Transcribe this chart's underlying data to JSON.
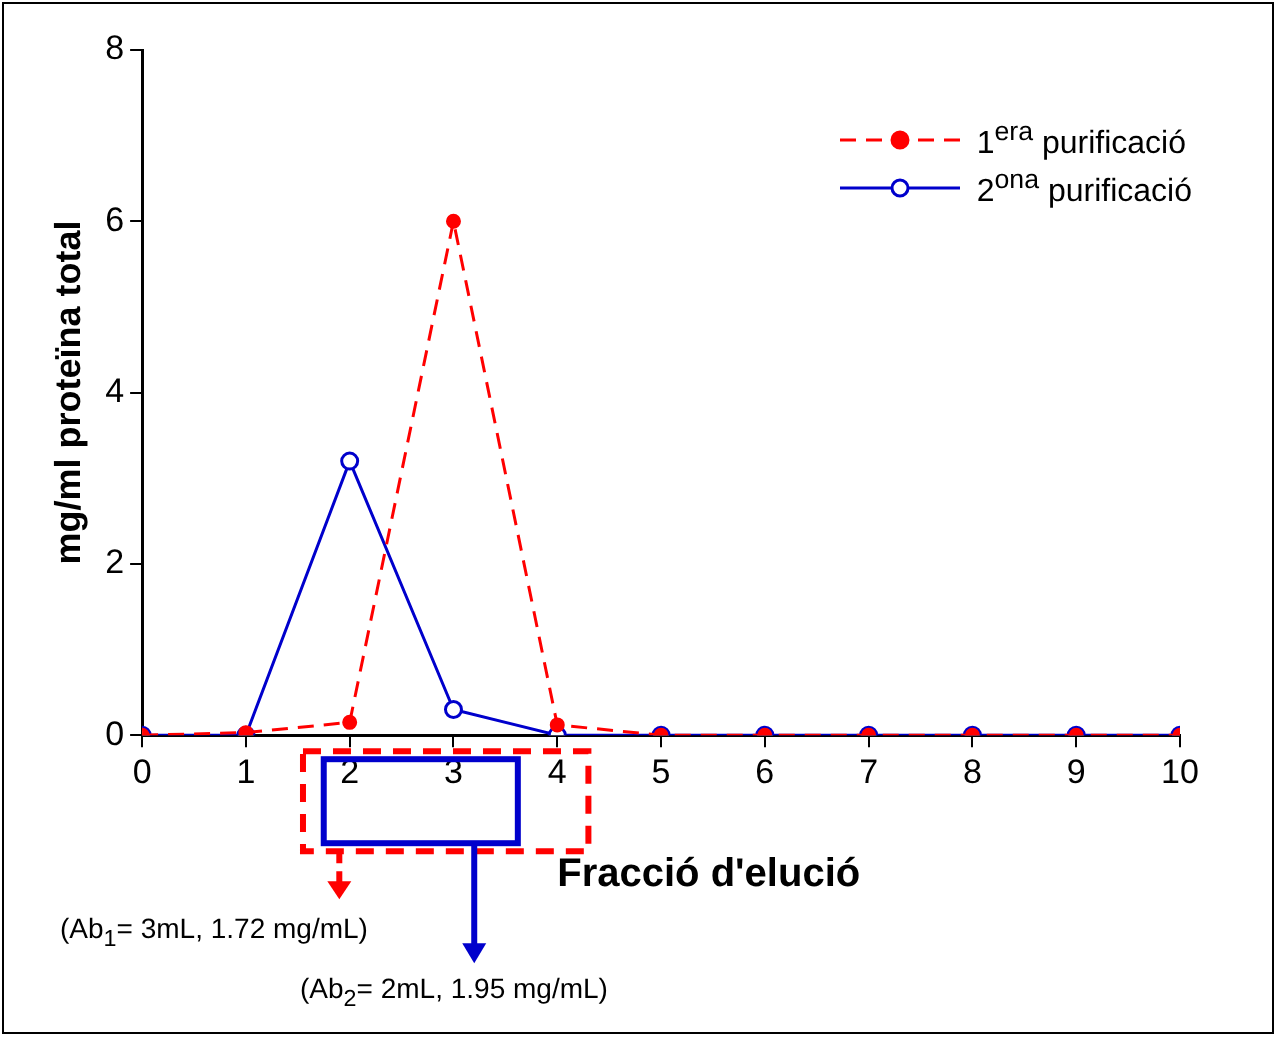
{
  "chart_data": {
    "type": "line",
    "xlabel": "Fracció d'elució",
    "ylabel": "mg/ml proteïna total",
    "x": [
      0,
      1,
      2,
      3,
      4,
      5,
      6,
      7,
      8,
      9,
      10
    ],
    "series": [
      {
        "name": "1$^{era}$ purificació",
        "color": "#ff0000",
        "line_style": "dashed",
        "marker": "circle",
        "values": [
          0,
          0.03,
          0.15,
          6.0,
          0.12,
          0,
          0,
          0,
          0,
          0,
          0
        ]
      },
      {
        "name": "2$^{ona}$ purificació",
        "color": "#0000cc",
        "line_style": "solid",
        "marker": "circle",
        "values": [
          0,
          0,
          3.2,
          0.3,
          0,
          0,
          0,
          0,
          0,
          0,
          0
        ]
      }
    ],
    "xlim": [
      0,
      10
    ],
    "xticks": [
      0,
      1,
      2,
      3,
      4,
      5,
      6,
      7,
      8,
      9,
      10
    ],
    "ylim": [
      0,
      8
    ],
    "yticks": [
      0,
      2,
      4,
      6,
      8
    ],
    "grid": false,
    "legend": "top right",
    "annotations": [
      "(Ab$_{1}$= 3mL, 1.72 mg/mL)",
      "(Ab$_{2}$= 2mL, 1.95 mg/mL)"
    ]
  }
}
